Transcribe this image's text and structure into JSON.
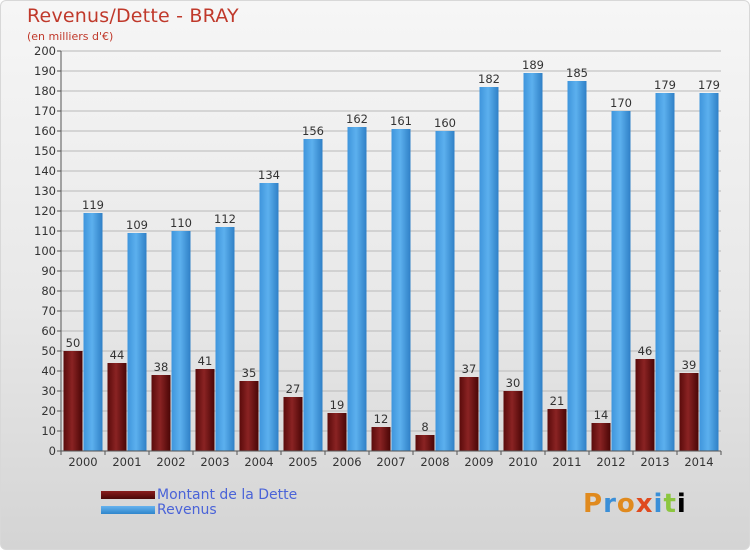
{
  "chart_data": {
    "type": "bar",
    "title": "Revenus/Dette - BRAY",
    "subtitle": "(en milliers d'€)",
    "categories": [
      "2000",
      "2001",
      "2002",
      "2003",
      "2004",
      "2005",
      "2006",
      "2007",
      "2008",
      "2009",
      "2010",
      "2011",
      "2012",
      "2013",
      "2014"
    ],
    "series": [
      {
        "name": "Montant de la Dette",
        "color": "#6e1212",
        "values": [
          50,
          44,
          38,
          41,
          35,
          27,
          19,
          12,
          8,
          37,
          30,
          21,
          14,
          46,
          39
        ]
      },
      {
        "name": "Revenus",
        "color": "#4aa3e6",
        "values": [
          119,
          109,
          110,
          112,
          134,
          156,
          162,
          161,
          160,
          182,
          189,
          185,
          170,
          179,
          179
        ]
      }
    ],
    "ylim": [
      0,
      200
    ],
    "ytick_step": 10,
    "grid": true,
    "legend_placement": "bottom-left"
  },
  "logo": {
    "letters": [
      "P",
      "r",
      "o",
      "x",
      "i",
      "t",
      "i"
    ]
  }
}
